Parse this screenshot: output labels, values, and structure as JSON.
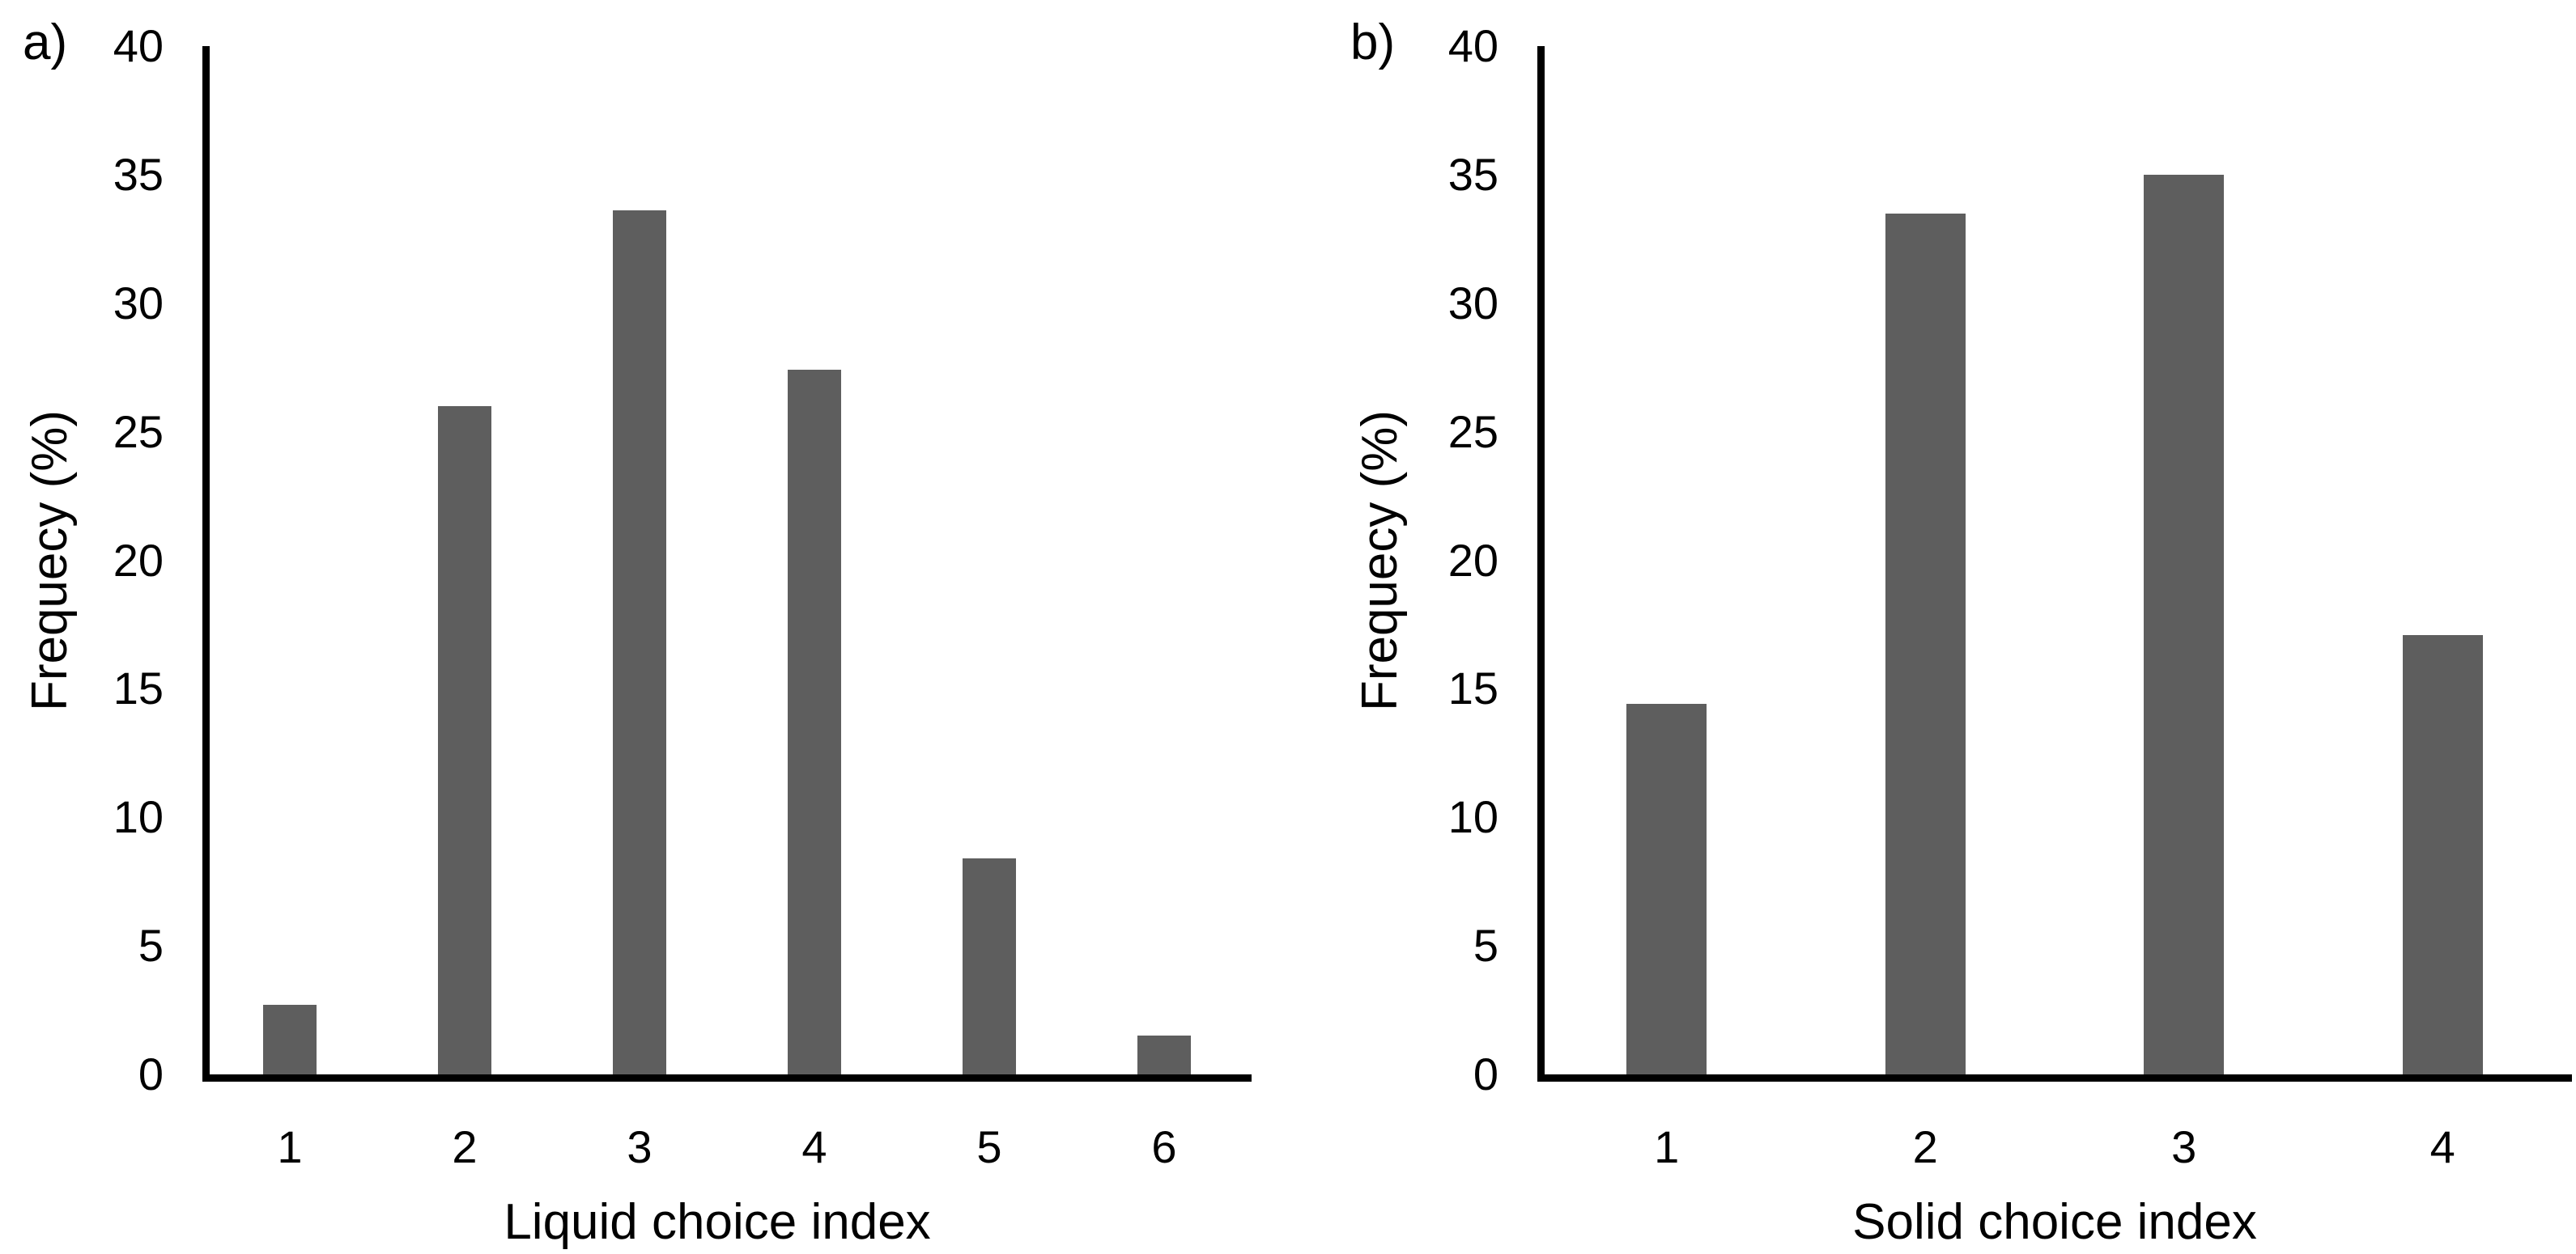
{
  "figure": {
    "background": "#ffffff",
    "axis_color": "#000000",
    "text_color": "#000000",
    "bar_color": "#5e5e5e"
  },
  "chart_data": [
    {
      "type": "bar",
      "panel_label": "a)",
      "title": "",
      "xlabel": "Liquid choice index",
      "ylabel": "Frequecy (%)",
      "categories": [
        "1",
        "2",
        "3",
        "4",
        "5",
        "6"
      ],
      "values": [
        2.7,
        26.0,
        33.6,
        27.4,
        8.4,
        1.5
      ],
      "ylim": [
        0,
        40
      ],
      "yticks": [
        0,
        5,
        10,
        15,
        20,
        25,
        30,
        35,
        40
      ],
      "grid": false,
      "legend": "none",
      "bar_color": "#5e5e5e",
      "bar_width_fraction": 0.31
    },
    {
      "type": "bar",
      "panel_label": "b)",
      "title": "",
      "xlabel": "Solid choice index",
      "ylabel": "Frequecy (%)",
      "categories": [
        "1",
        "2",
        "3",
        "4"
      ],
      "values": [
        14.4,
        33.5,
        35.0,
        17.1
      ],
      "ylim": [
        0,
        40
      ],
      "yticks": [
        0,
        5,
        10,
        15,
        20,
        25,
        30,
        35,
        40
      ],
      "grid": false,
      "legend": "none",
      "bar_color": "#5e5e5e",
      "bar_width_fraction": 0.31
    }
  ]
}
